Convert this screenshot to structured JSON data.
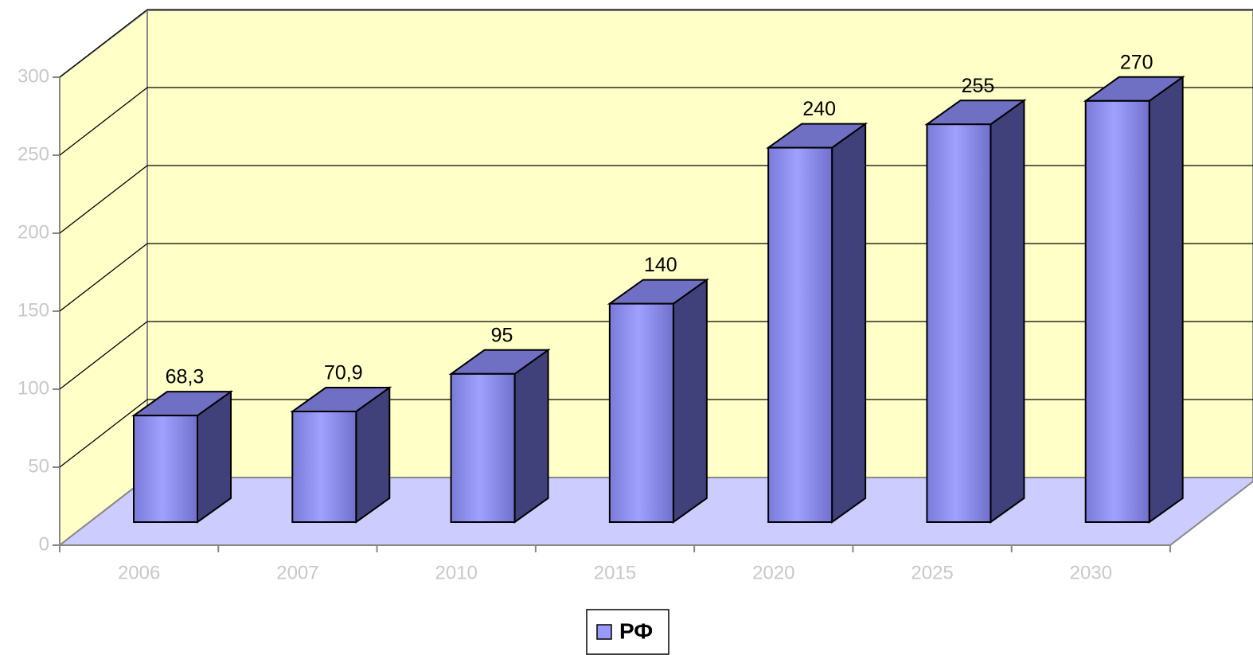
{
  "chart_data": {
    "type": "bar",
    "categories": [
      "2006",
      "2007",
      "2010",
      "2015",
      "2020",
      "2025",
      "2030"
    ],
    "series": [
      {
        "name": "РФ",
        "color": "#9999ff",
        "values": [
          68.3,
          70.9,
          95,
          140,
          240,
          255,
          270
        ],
        "value_labels": [
          "68,3",
          "70,9",
          "95",
          "140",
          "240",
          "255",
          "270"
        ]
      }
    ],
    "ylim": [
      0,
      300
    ],
    "yticks": [
      0,
      50,
      100,
      150,
      200,
      250,
      300
    ],
    "grid": true
  }
}
